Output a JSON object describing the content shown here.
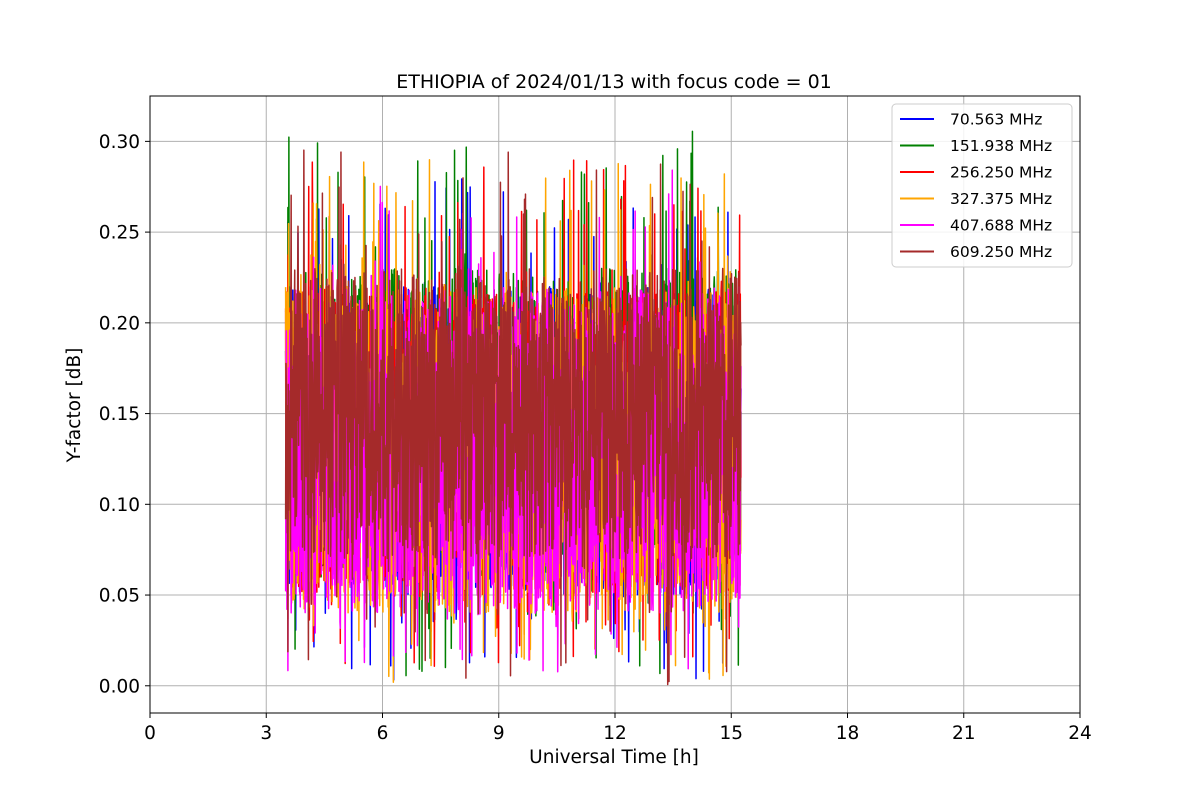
{
  "chart_data": {
    "type": "line",
    "title": "ETHIOPIA of 2024/01/13 with focus code = 01",
    "xlabel": "Universal Time [h]",
    "ylabel": "Y-factor [dB]",
    "xlim": [
      0,
      24
    ],
    "ylim": [
      -0.015,
      0.325
    ],
    "xticks": [
      0,
      3,
      6,
      9,
      12,
      15,
      18,
      21,
      24
    ],
    "xtick_labels": [
      "0",
      "3",
      "6",
      "9",
      "12",
      "15",
      "18",
      "21",
      "24"
    ],
    "yticks": [
      0.0,
      0.05,
      0.1,
      0.15,
      0.2,
      0.25,
      0.3
    ],
    "ytick_labels": [
      "0.00",
      "0.05",
      "0.10",
      "0.15",
      "0.20",
      "0.25",
      "0.30"
    ],
    "grid": true,
    "legend_position": "top-right",
    "x_range_of_data": [
      3.5,
      15.25
    ],
    "series": [
      {
        "name": " 70.563 MHz",
        "color": "#0000ff",
        "typical_range": [
          0.05,
          0.22
        ],
        "min": 0.0,
        "max": 0.28
      },
      {
        "name": "151.938 MHz",
        "color": "#008000",
        "typical_range": [
          0.06,
          0.23
        ],
        "min": 0.0,
        "max": 0.31
      },
      {
        "name": "256.250 MHz",
        "color": "#ff0000",
        "typical_range": [
          0.05,
          0.22
        ],
        "min": 0.01,
        "max": 0.29
      },
      {
        "name": "327.375 MHz",
        "color": "#ffa500",
        "typical_range": [
          0.04,
          0.22
        ],
        "min": 0.0,
        "max": 0.29
      },
      {
        "name": "407.688 MHz",
        "color": "#ff00ff",
        "typical_range": [
          0.04,
          0.22
        ],
        "min": 0.005,
        "max": 0.29
      },
      {
        "name": "609.250 MHz",
        "color": "#a52a2a",
        "typical_range": [
          0.07,
          0.23
        ],
        "min": 0.0,
        "max": 0.305
      }
    ]
  }
}
